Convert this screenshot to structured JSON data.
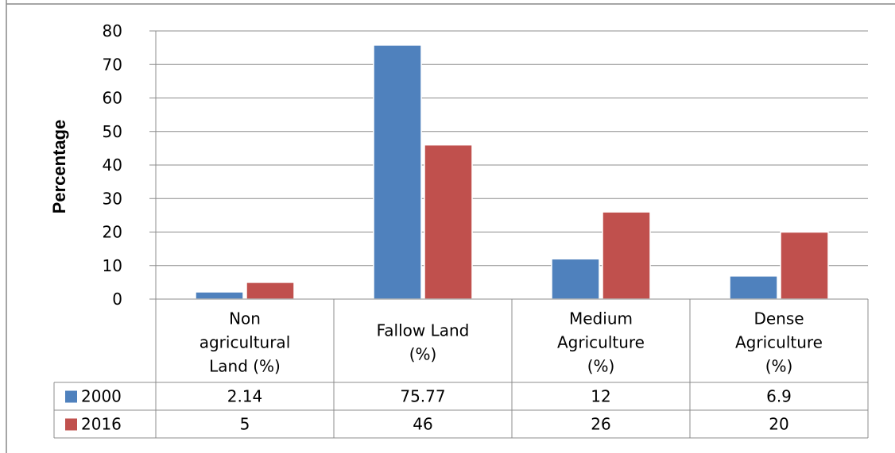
{
  "chart_data": {
    "type": "bar",
    "ylabel": "Percentage",
    "xlabel": "",
    "ylim": [
      0,
      80
    ],
    "yticks": [
      0,
      10,
      20,
      30,
      40,
      50,
      60,
      70,
      80
    ],
    "grid": true,
    "legend": "data-table-left",
    "categories": [
      [
        "Non",
        "agricultural",
        "Land (%)"
      ],
      [
        "Fallow Land",
        "(%)"
      ],
      [
        "Medium",
        "Agriculture",
        "(%)"
      ],
      [
        "Dense",
        "Agriculture",
        "(%)"
      ]
    ],
    "series": [
      {
        "name": "2000",
        "color": "#4f81bd",
        "values": [
          2.14,
          75.77,
          12,
          6.9
        ],
        "labels": [
          "2.14",
          "75.77",
          "12",
          "6.9"
        ]
      },
      {
        "name": "2016",
        "color": "#c0504d",
        "values": [
          5,
          46,
          26,
          20
        ],
        "labels": [
          "5",
          "46",
          "26",
          "20"
        ]
      }
    ]
  }
}
